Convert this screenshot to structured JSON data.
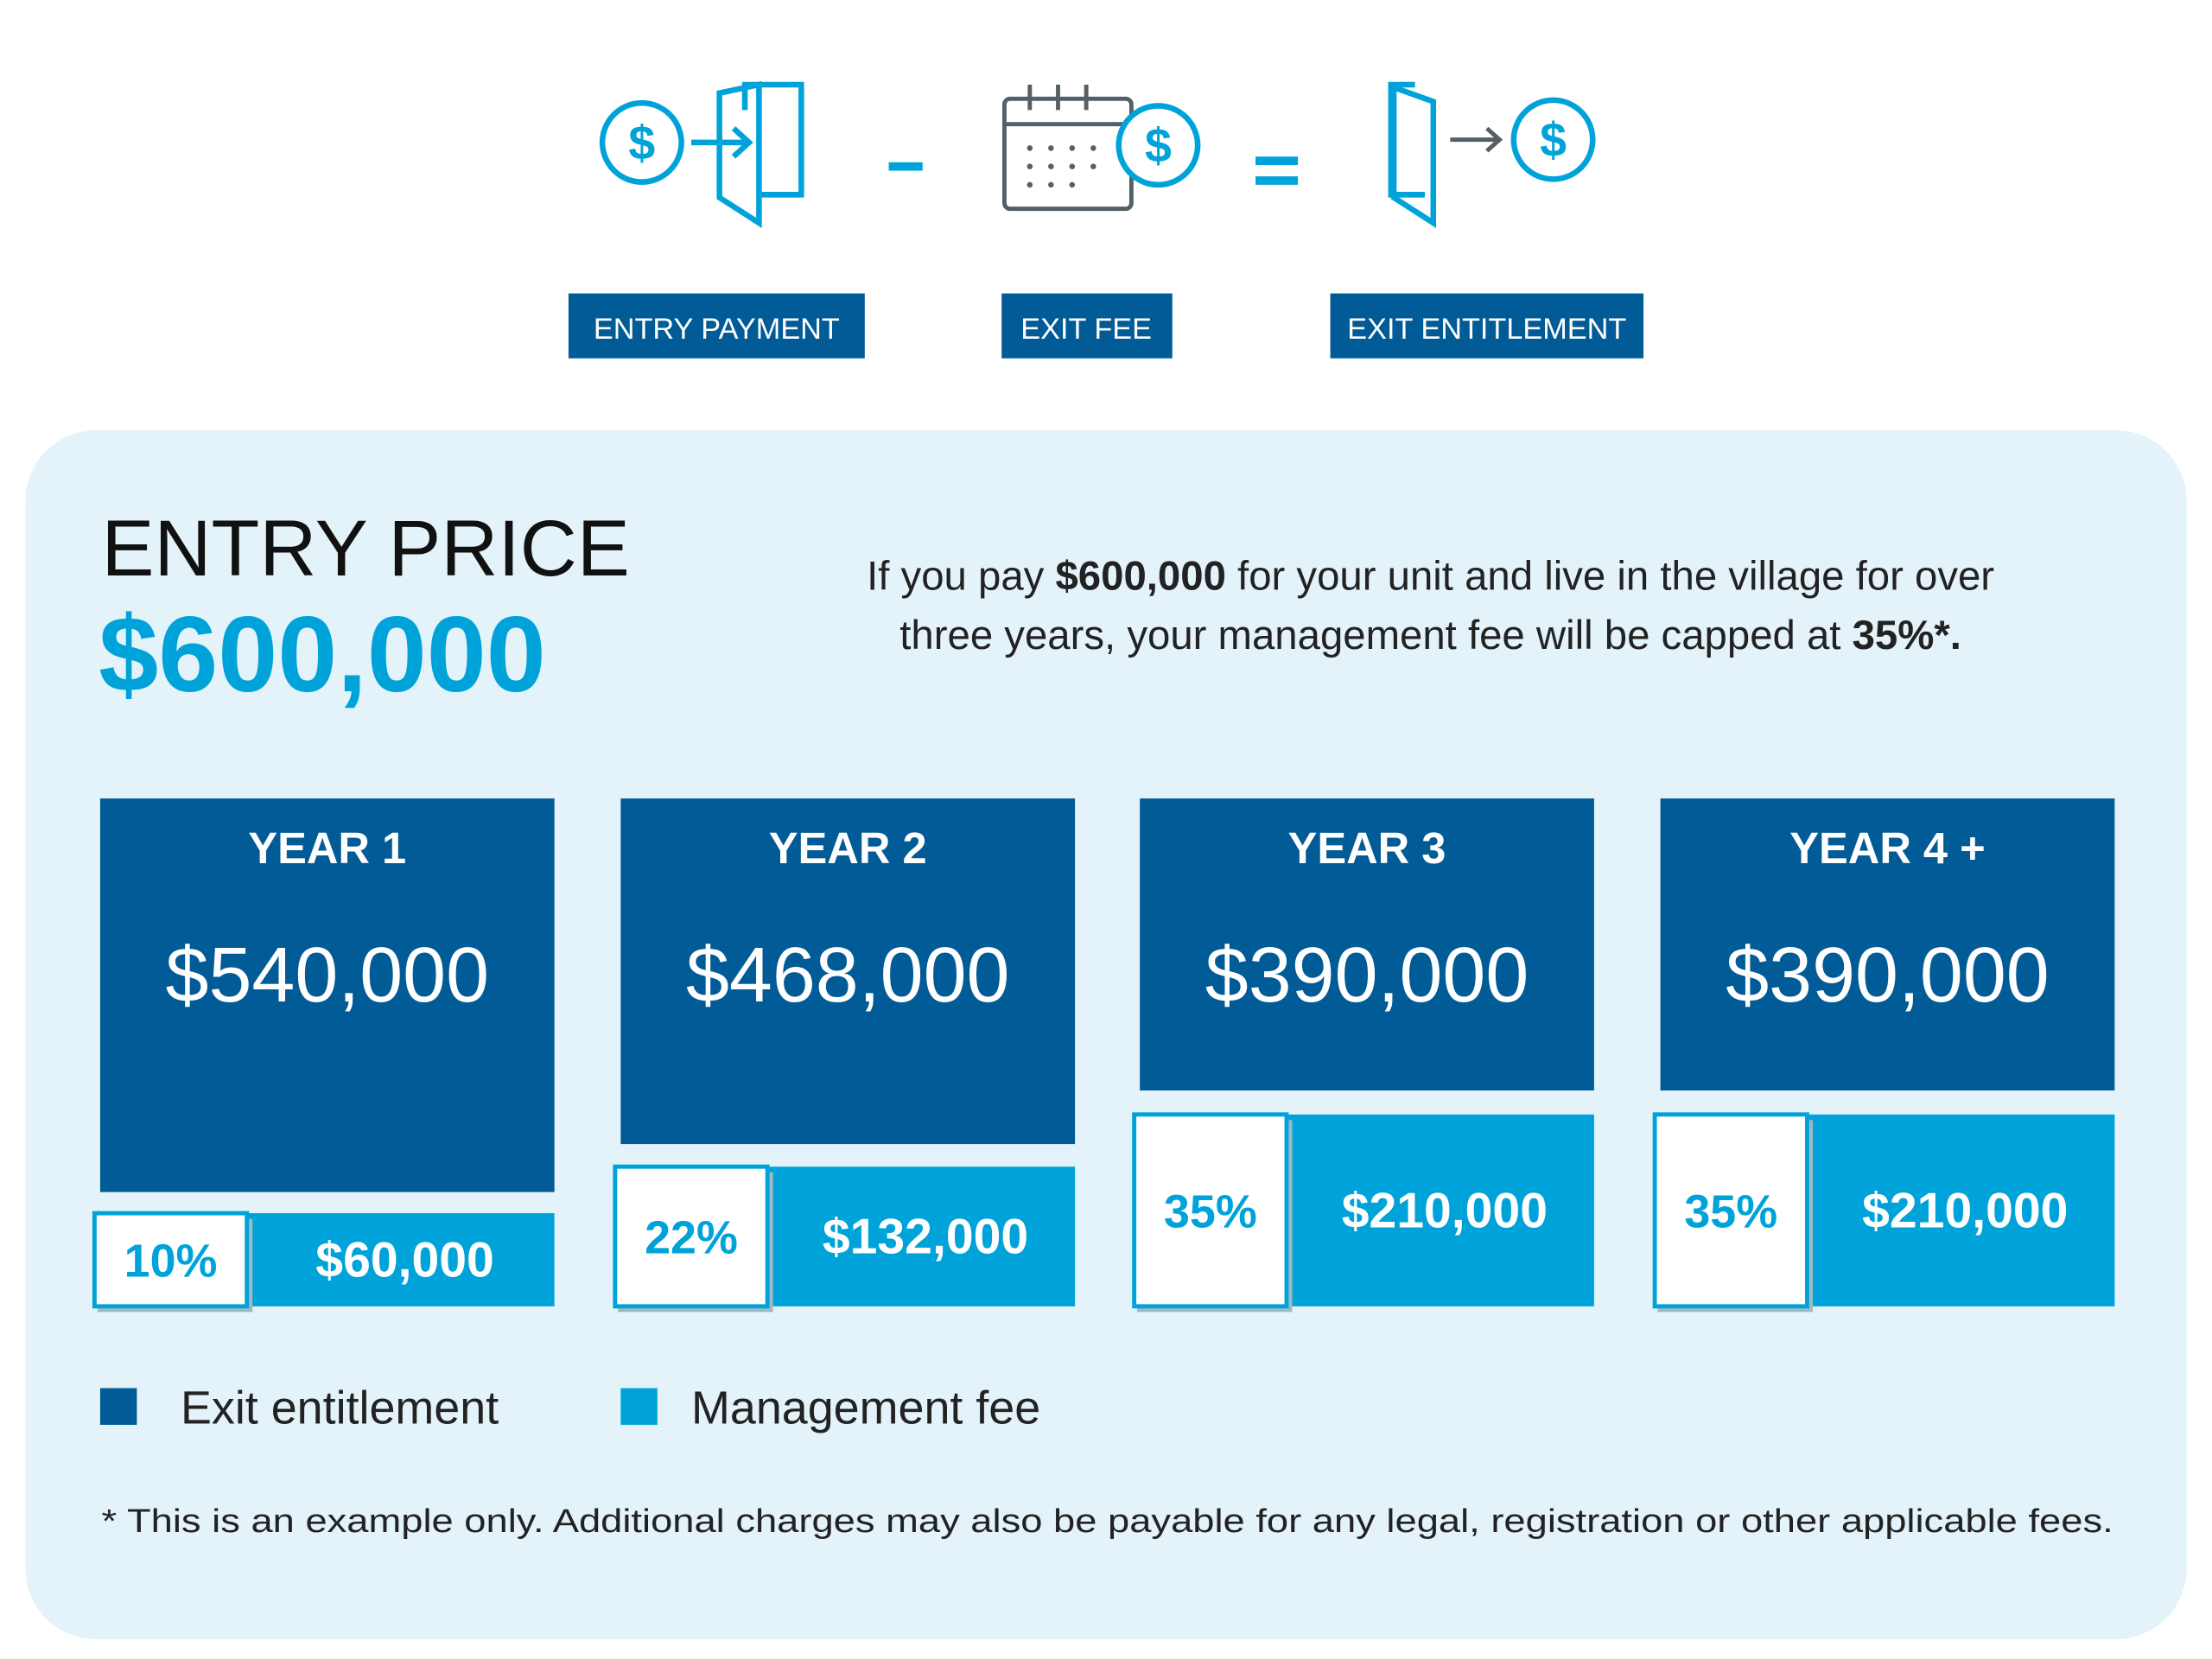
{
  "formula": {
    "labels": [
      "ENTRY PAYMENT",
      "EXIT FEE",
      "EXIT ENTITLEMENT"
    ]
  },
  "entry": {
    "heading": "ENTRY PRICE",
    "amount": "$600,000"
  },
  "intro": {
    "lines": [
      [
        "If you pay ",
        "$600,000",
        " for your unit and live in the village for over"
      ],
      [
        "three years, your management fee will be capped at ",
        "35%*."
      ]
    ]
  },
  "years": [
    {
      "label": "YEAR 1",
      "entitlement": "$540,000",
      "fee_percent": "10%",
      "fee": "$60,000"
    },
    {
      "label": "YEAR 2",
      "entitlement": "$468,000",
      "fee_percent": "22%",
      "fee": "$132,000"
    },
    {
      "label": "YEAR 3",
      "entitlement": "$390,000",
      "fee_percent": "35%",
      "fee": "$210,000"
    },
    {
      "label": "YEAR 4 +",
      "entitlement": "$390,000",
      "fee_percent": "35%",
      "fee": "$210,000"
    }
  ],
  "legend": [
    "Exit entitlement",
    "Management fee"
  ],
  "footnote": "* This is an example only. Additional charges may also be payable for any legal, registration or other applicable fees."
}
